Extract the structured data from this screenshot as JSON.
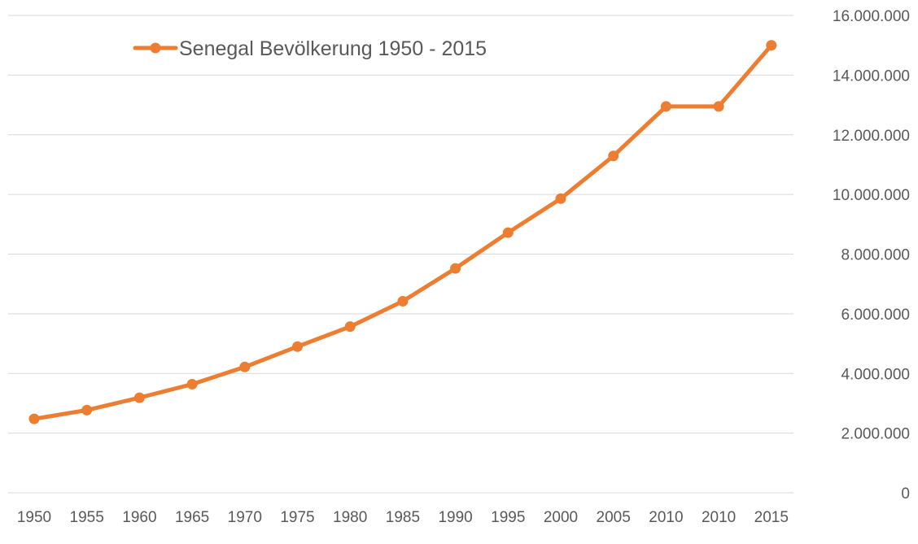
{
  "chart_data": {
    "type": "line",
    "title": "",
    "xlabel": "",
    "ylabel": "",
    "categories": [
      "1950",
      "1955",
      "1960",
      "1965",
      "1970",
      "1975",
      "1980",
      "1985",
      "1990",
      "1995",
      "2000",
      "2005",
      "2010",
      "2010",
      "2015"
    ],
    "series": [
      {
        "name": "Senegal Bevölkerung 1950 - 2015",
        "color": "#ED7D31",
        "values": [
          2477000,
          2770000,
          3186000,
          3640000,
          4218000,
          4900000,
          5570000,
          6420000,
          7520000,
          8720000,
          9860000,
          11290000,
          12950000,
          12950000,
          15000000
        ]
      }
    ],
    "ylim": [
      0,
      16000000
    ],
    "y_ticks": [
      0,
      2000000,
      4000000,
      6000000,
      8000000,
      10000000,
      12000000,
      14000000,
      16000000
    ],
    "y_tick_labels": [
      "0",
      "2.000.000",
      "4.000.000",
      "6.000.000",
      "8.000.000",
      "10.000.000",
      "12.000.000",
      "14.000.000",
      "16.000.000"
    ],
    "y_axis_side": "right",
    "grid": true,
    "legend_position": "top-left",
    "markers": true
  }
}
